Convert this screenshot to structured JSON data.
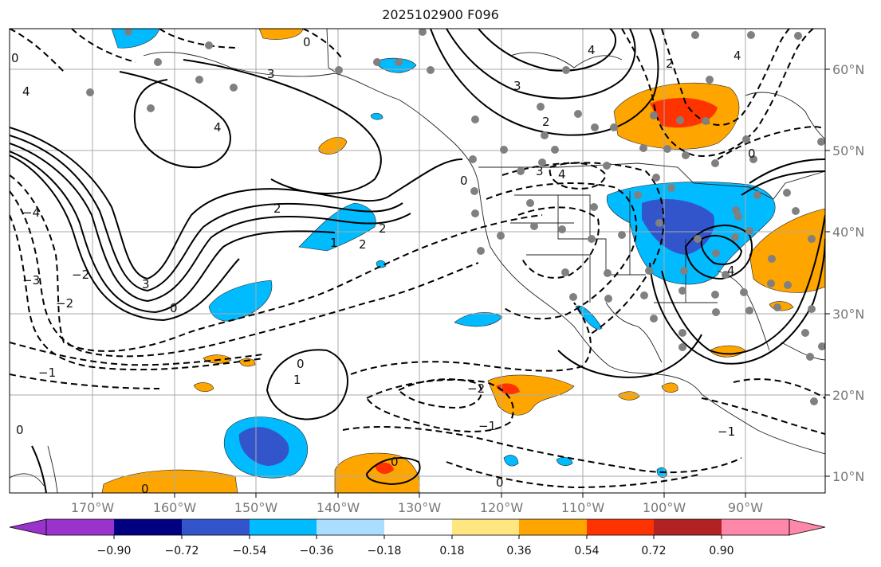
{
  "title": "2025102900 F096",
  "map": {
    "lon_labels": [
      "170°W",
      "160°W",
      "150°W",
      "140°W",
      "130°W",
      "120°W",
      "110°W",
      "100°W",
      "90°W"
    ],
    "lat_labels": [
      "60°N",
      "50°N",
      "40°N",
      "30°N",
      "20°N",
      "10°N"
    ]
  },
  "colorbar": {
    "colors": [
      "#9933cc",
      "#000080",
      "#3355cc",
      "#00bbff",
      "#aaddff",
      "#ffffff",
      "#ffe680",
      "#ffa500",
      "#ff3300",
      "#b22222",
      "#ff88aa"
    ],
    "ticks": [
      "−0.90",
      "−0.72",
      "−0.54",
      "−0.36",
      "−0.18",
      "0.18",
      "0.36",
      "0.54",
      "0.72",
      "0.90"
    ]
  },
  "contour_labels": [
    "0",
    "4",
    "3",
    "2",
    "1",
    "−2",
    "−3",
    "−1",
    "−4"
  ]
}
